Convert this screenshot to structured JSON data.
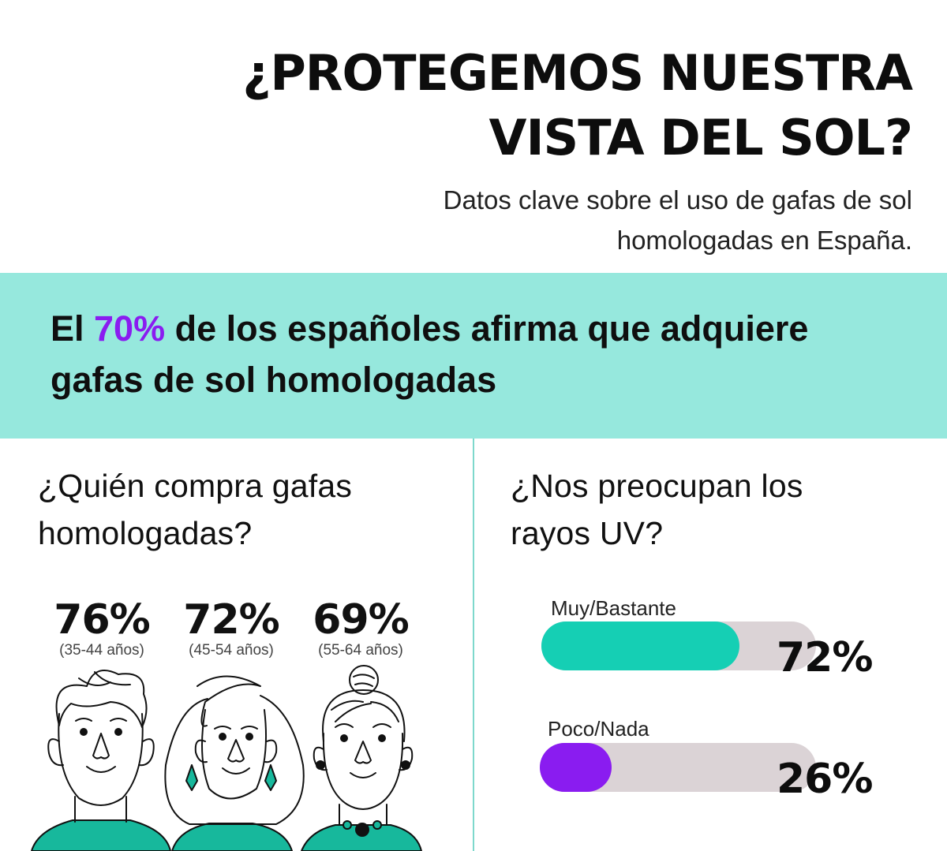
{
  "title": {
    "line1": "¿PROTEGEMOS NUESTRA",
    "line2": "VISTA DEL SOL?"
  },
  "subtitle": {
    "line1": "Datos clave sobre el uso de gafas de sol",
    "line2": "homologadas en España."
  },
  "banner": {
    "pre": "El ",
    "highlight": "70%",
    "post": " de los españoles afirma que adquiere",
    "line2": "gafas de sol homologadas",
    "highlight_color": "#8a1cf0",
    "background_color": "#96e8dd"
  },
  "left_section": {
    "title_line1": "¿Quién compra gafas",
    "title_line2": "homologadas?",
    "stats": [
      {
        "value": "76%",
        "age": "(35-44 años)",
        "icon": "man-face-icon"
      },
      {
        "value": "72%",
        "age": "(45-54 años)",
        "icon": "woman-face-icon"
      },
      {
        "value": "69%",
        "age": "(55-64 años)",
        "icon": "older-woman-face-icon"
      }
    ]
  },
  "right_section": {
    "title_line1": "¿Nos preocupan los",
    "title_line2": "rayos UV?"
  },
  "chart_data": [
    {
      "type": "bar",
      "categories": [
        "35-44 años",
        "45-54 años",
        "55-64 años"
      ],
      "values": [
        76,
        72,
        69
      ],
      "title": "¿Quién compra gafas homologadas?"
    },
    {
      "type": "bar",
      "orientation": "horizontal",
      "title": "¿Nos preocupan los rayos UV?",
      "categories": [
        "Muy/Bastante",
        "Poco/Nada"
      ],
      "values": [
        72,
        26
      ],
      "value_labels": [
        "72%",
        "26%"
      ],
      "xlim": [
        0,
        100
      ],
      "colors": [
        "#15cfb4",
        "#8a1cf0"
      ],
      "track_color": "#dbd3d6"
    }
  ]
}
